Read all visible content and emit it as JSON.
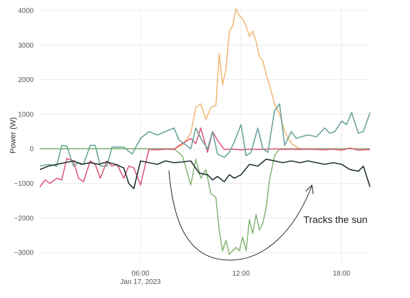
{
  "chart_data": {
    "type": "line",
    "title": "",
    "xlabel": "",
    "ylabel": "Power (W)",
    "ylim": [
      -3300,
      4100
    ],
    "yticks": [
      -3000,
      -2000,
      -1000,
      0,
      1000,
      2000,
      3000,
      4000
    ],
    "ytick_labels": [
      "−3000",
      "−2000",
      "−1000",
      "0",
      "1000",
      "2000",
      "3000",
      "4000"
    ],
    "xlim": [
      0,
      19.7
    ],
    "xticks": [
      6,
      12,
      18
    ],
    "xtick_labels": [
      "06:00",
      "12:00",
      "18:00"
    ],
    "xtick_sublabel": "Jan 17, 2023",
    "grid": true,
    "annotation": {
      "text": "Tracks the sun"
    },
    "series": [
      {
        "color": "#f0b978",
        "x": [
          0,
          0.5,
          1,
          1.5,
          2,
          2.5,
          3,
          3.5,
          4,
          4.5,
          5,
          5.5,
          6,
          6.5,
          7,
          7.5,
          8,
          8.5,
          9,
          9.3,
          9.6,
          9.9,
          10.2,
          10.5,
          10.7,
          10.9,
          11.1,
          11.3,
          11.5,
          11.7,
          11.9,
          12.1,
          12.3,
          12.5,
          12.7,
          12.9,
          13.1,
          13.3,
          13.5,
          13.7,
          14,
          14.3,
          14.6,
          15,
          15.5,
          16,
          17,
          18,
          19,
          19.7
        ],
        "values": [
          0,
          0,
          0,
          0,
          0,
          0,
          0,
          0,
          0,
          0,
          0,
          0,
          0,
          0,
          0,
          0,
          0,
          100,
          450,
          1200,
          1300,
          850,
          1200,
          1250,
          2750,
          1850,
          2300,
          3400,
          3550,
          4050,
          3850,
          3750,
          3550,
          3250,
          3400,
          3100,
          2650,
          2550,
          2150,
          1850,
          1300,
          1000,
          500,
          150,
          0,
          0,
          0,
          0,
          0,
          0
        ]
      },
      {
        "color": "#8ab87a",
        "x": [
          0,
          0.5,
          1,
          1.5,
          2,
          2.5,
          3,
          3.5,
          4,
          4.5,
          5,
          5.5,
          6,
          6.5,
          7,
          7.5,
          8,
          8.5,
          9,
          9.3,
          9.6,
          9.9,
          10.2,
          10.5,
          10.7,
          10.9,
          11.1,
          11.3,
          11.5,
          11.7,
          11.9,
          12.1,
          12.3,
          12.5,
          12.7,
          12.9,
          13.1,
          13.3,
          13.5,
          13.7,
          14,
          14.3,
          14.6,
          15,
          15.5,
          16,
          17,
          18,
          19,
          19.7
        ],
        "values": [
          0,
          0,
          0,
          0,
          0,
          0,
          0,
          0,
          0,
          0,
          0,
          0,
          0,
          0,
          0,
          0,
          0,
          -200,
          -1050,
          -300,
          -850,
          -600,
          -1300,
          -1400,
          -2350,
          -2950,
          -2650,
          -3050,
          -2950,
          -2850,
          -2950,
          -2550,
          -2950,
          -2050,
          -2450,
          -1900,
          -2350,
          -2150,
          -1700,
          -900,
          -200,
          0,
          0,
          0,
          0,
          0,
          0,
          0,
          0,
          0
        ]
      },
      {
        "color": "#dc5a7c",
        "x": [
          0,
          0.3,
          0.6,
          1,
          1.3,
          1.6,
          2,
          2.3,
          2.6,
          3,
          3.3,
          3.6,
          4,
          4.3,
          4.6,
          5,
          5.3,
          5.6,
          6,
          6.5,
          7,
          7.5,
          8,
          8.3,
          8.6,
          9,
          9.3,
          9.6,
          10,
          10.3,
          10.6,
          11,
          11.5,
          12,
          12.5,
          13,
          13.5,
          14,
          14.5,
          15,
          15.5,
          16,
          16.5,
          17,
          17.5,
          18,
          18.5,
          19,
          19.7
        ],
        "values": [
          -1100,
          -900,
          -1000,
          -850,
          -900,
          -280,
          -350,
          -850,
          -950,
          -350,
          -450,
          -850,
          -350,
          -500,
          -450,
          -850,
          -500,
          -550,
          -1050,
          -20,
          -30,
          -10,
          -20,
          100,
          180,
          300,
          150,
          600,
          -100,
          500,
          250,
          -20,
          -10,
          -30,
          -10,
          -20,
          -10,
          0,
          -20,
          -10,
          -20,
          -10,
          -20,
          -30,
          -10,
          -40,
          20,
          -40,
          -20
        ]
      },
      {
        "color": "#6aa39d",
        "x": [
          0,
          0.5,
          1,
          1.3,
          1.6,
          2,
          2.3,
          2.6,
          3,
          3.3,
          3.6,
          4,
          4.3,
          4.6,
          5,
          5.5,
          6,
          6.5,
          7,
          7.5,
          8,
          8.3,
          8.6,
          9,
          9.3,
          9.6,
          10,
          10.3,
          10.6,
          11,
          11.3,
          11.6,
          12,
          12.3,
          12.6,
          13,
          13.3,
          13.6,
          14,
          14.3,
          14.6,
          15,
          15.3,
          15.6,
          16,
          16.5,
          17,
          17.3,
          17.6,
          18,
          18.3,
          18.6,
          19,
          19.3,
          19.7
        ],
        "values": [
          -500,
          -450,
          -500,
          100,
          80,
          -500,
          -400,
          -450,
          100,
          100,
          -500,
          -500,
          50,
          50,
          50,
          -150,
          300,
          500,
          400,
          500,
          600,
          250,
          150,
          0,
          600,
          300,
          0,
          500,
          -150,
          -250,
          -100,
          200,
          700,
          -200,
          -100,
          600,
          0,
          -100,
          1100,
          1300,
          100,
          500,
          300,
          350,
          400,
          350,
          600,
          450,
          500,
          800,
          700,
          1050,
          450,
          500,
          1050
        ]
      },
      {
        "color": "#1f3230",
        "x": [
          0,
          0.5,
          1,
          1.5,
          2,
          2.5,
          3,
          3.5,
          4,
          4.5,
          5,
          5.3,
          5.6,
          6,
          6.5,
          7,
          7.5,
          8,
          8.5,
          9,
          9.5,
          10,
          10.3,
          10.6,
          11,
          11.3,
          11.6,
          12,
          12.5,
          13,
          13.5,
          14,
          14.5,
          15,
          15.5,
          16,
          16.5,
          17,
          17.5,
          18,
          18.5,
          19,
          19.3,
          19.7
        ],
        "values": [
          -600,
          -500,
          -450,
          -400,
          -350,
          -450,
          -400,
          -450,
          -380,
          -450,
          -550,
          -1000,
          -1150,
          -350,
          -400,
          -450,
          -350,
          -400,
          -380,
          -350,
          -700,
          -750,
          -900,
          -800,
          -950,
          -750,
          -850,
          -750,
          -450,
          -500,
          -300,
          -350,
          -400,
          -350,
          -400,
          -350,
          -400,
          -450,
          -400,
          -450,
          -600,
          -650,
          -500,
          -1100
        ]
      }
    ]
  }
}
